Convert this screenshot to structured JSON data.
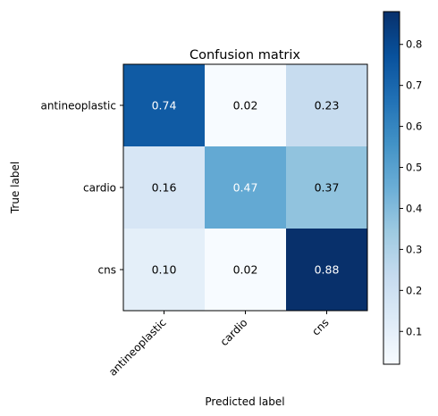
{
  "chart_data": {
    "type": "heatmap",
    "title": "Confusion matrix",
    "xlabel": "Predicted label",
    "ylabel": "True label",
    "x_categories": [
      "antineoplastic",
      "cardio",
      "cns"
    ],
    "y_categories": [
      "antineoplastic",
      "cardio",
      "cns"
    ],
    "values": [
      [
        0.74,
        0.02,
        0.23
      ],
      [
        0.16,
        0.47,
        0.37
      ],
      [
        0.1,
        0.02,
        0.88
      ]
    ],
    "value_labels": [
      [
        "0.74",
        "0.02",
        "0.23"
      ],
      [
        "0.16",
        "0.47",
        "0.37"
      ],
      [
        "0.10",
        "0.02",
        "0.88"
      ]
    ],
    "colormap": "Blues",
    "colorbar": {
      "vmin": 0.02,
      "vmax": 0.88,
      "ticks": [
        0.1,
        0.2,
        0.3,
        0.4,
        0.5,
        0.6,
        0.7,
        0.8
      ],
      "tick_labels": [
        "0.1",
        "0.2",
        "0.3",
        "0.4",
        "0.5",
        "0.6",
        "0.7",
        "0.8"
      ]
    },
    "grid": false,
    "x_tick_rotation": 45
  }
}
